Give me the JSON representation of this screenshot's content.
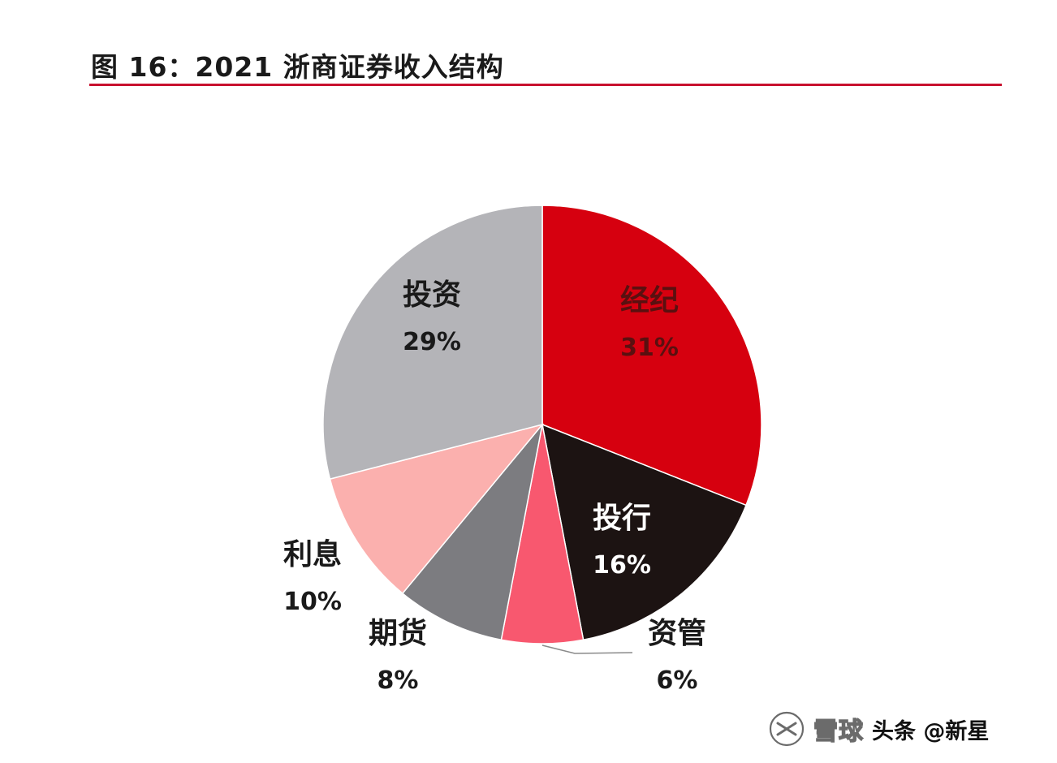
{
  "header": {
    "title": "图 16：2021 浙商证券收入结构"
  },
  "chart_data": {
    "type": "pie",
    "title": "图 16：2021 浙商证券收入结构",
    "start_angle_deg": 0,
    "direction": "clockwise",
    "slices": [
      {
        "label": "经纪",
        "value": 31,
        "display": "31%",
        "color": "#d6000f",
        "label_color": "#5a1010"
      },
      {
        "label": "投行",
        "value": 16,
        "display": "16%",
        "color": "#1c1312",
        "label_color": "#ffffff"
      },
      {
        "label": "资管",
        "value": 6,
        "display": "6%",
        "color": "#f8586f",
        "label_color": "#1a1a1a"
      },
      {
        "label": "期货",
        "value": 8,
        "display": "8%",
        "color": "#7c7c80",
        "label_color": "#1a1a1a"
      },
      {
        "label": "利息",
        "value": 10,
        "display": "10%",
        "color": "#fbb0ae",
        "label_color": "#1a1a1a"
      },
      {
        "label": "投资",
        "value": 29,
        "display": "29%",
        "color": "#b4b4b8",
        "label_color": "#1a1a1a"
      }
    ],
    "legend": "none"
  },
  "watermark": {
    "brand": "雪球",
    "text": "头条 @新星"
  }
}
